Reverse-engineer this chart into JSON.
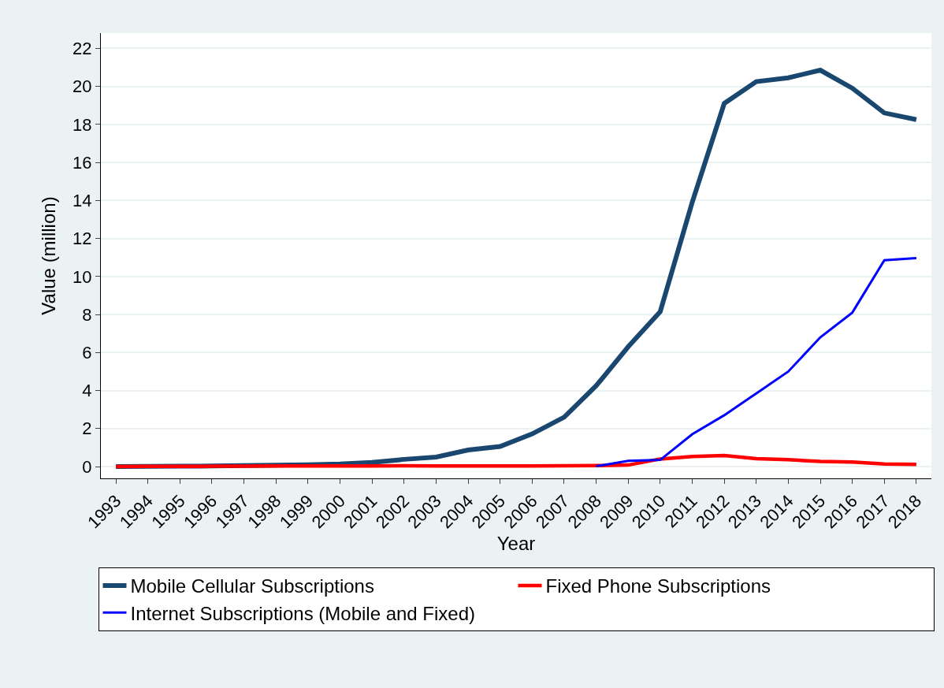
{
  "chart_data": {
    "type": "line",
    "xlabel": "Year",
    "ylabel": "Value (million)",
    "x": [
      1993,
      1994,
      1995,
      1996,
      1997,
      1998,
      1999,
      2000,
      2001,
      2002,
      2003,
      2004,
      2005,
      2006,
      2007,
      2008,
      2009,
      2010,
      2011,
      2012,
      2013,
      2014,
      2015,
      2016,
      2017,
      2018
    ],
    "series": [
      {
        "name": "Mobile Cellular Subscriptions",
        "color": "#1a476f",
        "values": [
          0,
          0.01,
          0.02,
          0.03,
          0.05,
          0.07,
          0.1,
          0.14,
          0.22,
          0.38,
          0.5,
          0.87,
          1.06,
          1.72,
          2.6,
          4.25,
          6.3,
          8.15,
          13.9,
          19.1,
          20.25,
          20.45,
          20.85,
          19.9,
          18.6,
          18.25
        ]
      },
      {
        "name": "Fixed Phone Subscriptions",
        "color": "#ff0000",
        "values": [
          0,
          0.01,
          0.01,
          0.02,
          0.02,
          0.03,
          0.03,
          0.03,
          0.03,
          0.04,
          0.03,
          0.03,
          0.03,
          0.03,
          0.04,
          0.05,
          0.08,
          0.4,
          0.53,
          0.58,
          0.42,
          0.36,
          0.27,
          0.24,
          0.14,
          0.12
        ]
      },
      {
        "name": "Internet Subscriptions (Mobile and Fixed)",
        "color": "#0000ff",
        "values": [
          null,
          null,
          null,
          null,
          null,
          null,
          null,
          null,
          null,
          null,
          null,
          null,
          null,
          null,
          null,
          0.02,
          0.3,
          0.35,
          1.7,
          2.7,
          3.85,
          5.0,
          6.8,
          8.1,
          10.85,
          10.97
        ]
      }
    ],
    "xlim": [
      1992.53,
      2018.47
    ],
    "xticks": [
      1993,
      1994,
      1995,
      1996,
      1997,
      1998,
      1999,
      2000,
      2001,
      2002,
      2003,
      2004,
      2005,
      2006,
      2007,
      2008,
      2009,
      2010,
      2011,
      2012,
      2013,
      2014,
      2015,
      2016,
      2017,
      2018
    ],
    "ylim": [
      -0.62,
      22.8
    ],
    "yticks": [
      0,
      2,
      4,
      6,
      8,
      10,
      12,
      14,
      16,
      18,
      20,
      22
    ],
    "grid": "y",
    "legend": "bottom",
    "marker": "none",
    "line_style": "solid"
  }
}
